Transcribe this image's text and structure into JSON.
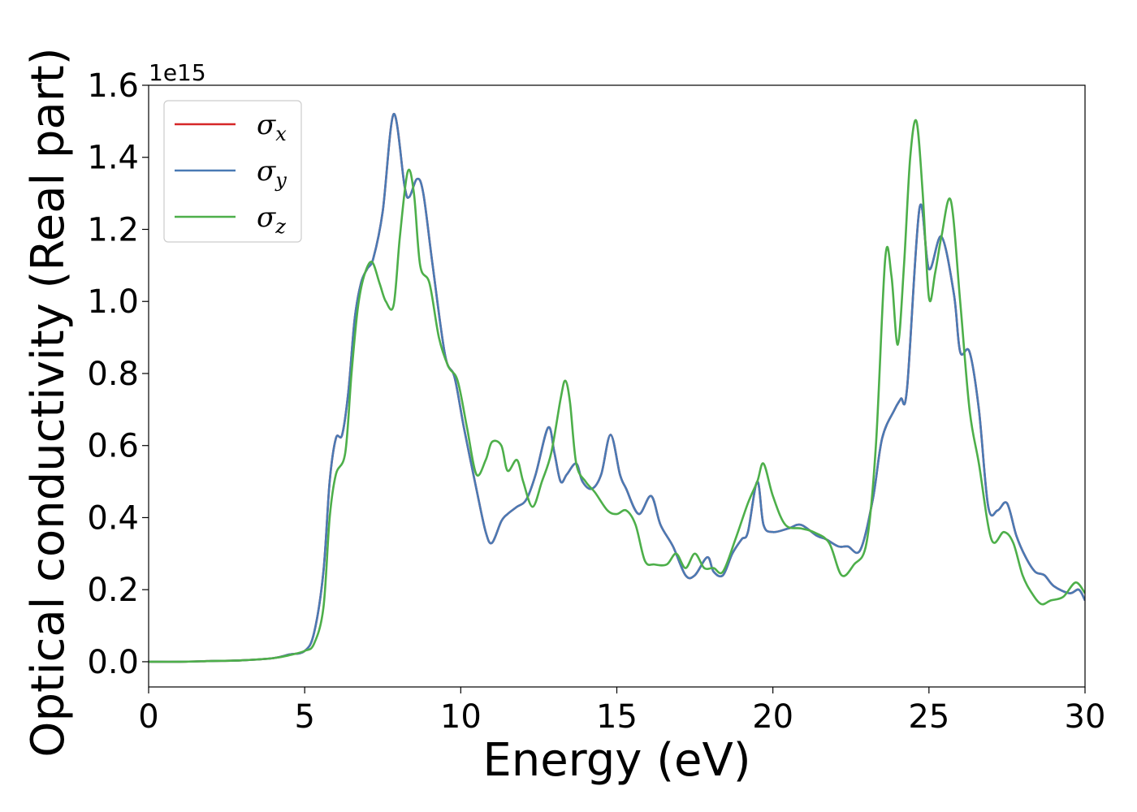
{
  "chart_data": {
    "type": "line",
    "title": "",
    "xlabel": "Energy (eV)",
    "ylabel": "Optical conductivity (Real part)",
    "y_offset_label": "1e15",
    "xlim": [
      0,
      30
    ],
    "ylim": [
      -0.07,
      1.6
    ],
    "x_ticks": [
      0,
      5,
      10,
      15,
      20,
      25,
      30
    ],
    "x_tick_labels": [
      "0",
      "5",
      "10",
      "15",
      "20",
      "25",
      "30"
    ],
    "y_ticks": [
      0.0,
      0.2,
      0.4,
      0.6,
      0.8,
      1.0,
      1.2,
      1.4,
      1.6
    ],
    "y_tick_labels": [
      "0.0",
      "0.2",
      "0.4",
      "0.6",
      "0.8",
      "1.0",
      "1.2",
      "1.4",
      "1.6"
    ],
    "grid": false,
    "legend_position": "top-left",
    "series": [
      {
        "name": "σx",
        "symbol": "σ",
        "subscript": "x",
        "color": "#d62728",
        "x": [
          0,
          1,
          2,
          3,
          4,
          4.5,
          5,
          5.3,
          5.6,
          5.8,
          6.0,
          6.2,
          6.4,
          6.6,
          6.8,
          7.0,
          7.2,
          7.5,
          7.85,
          8.2,
          8.35,
          8.6,
          8.8,
          9.1,
          9.5,
          9.8,
          10.1,
          10.5,
          10.8,
          11.0,
          11.3,
          11.5,
          11.8,
          12.1,
          12.4,
          12.8,
          13.0,
          13.2,
          13.4,
          13.7,
          13.9,
          14.2,
          14.5,
          14.8,
          15.1,
          15.3,
          15.7,
          16.1,
          16.4,
          16.8,
          17.2,
          17.5,
          17.9,
          18.1,
          18.4,
          18.7,
          19.0,
          19.2,
          19.5,
          19.7,
          20.0,
          20.5,
          20.9,
          21.4,
          21.7,
          22.1,
          22.4,
          22.8,
          23.2,
          23.5,
          23.9,
          24.1,
          24.3,
          24.7,
          25.0,
          25.4,
          25.8,
          26.0,
          26.3,
          26.6,
          26.9,
          27.2,
          27.5,
          27.8,
          28.1,
          28.4,
          28.7,
          29.0,
          29.5,
          29.8,
          30
        ],
        "values": [
          0,
          0,
          0.002,
          0.004,
          0.01,
          0.02,
          0.03,
          0.08,
          0.25,
          0.5,
          0.62,
          0.63,
          0.75,
          0.95,
          1.05,
          1.09,
          1.12,
          1.25,
          1.52,
          1.32,
          1.29,
          1.34,
          1.3,
          1.1,
          0.85,
          0.79,
          0.65,
          0.48,
          0.36,
          0.33,
          0.39,
          0.41,
          0.43,
          0.45,
          0.52,
          0.65,
          0.58,
          0.5,
          0.52,
          0.55,
          0.5,
          0.48,
          0.52,
          0.63,
          0.52,
          0.48,
          0.41,
          0.46,
          0.38,
          0.32,
          0.24,
          0.24,
          0.29,
          0.25,
          0.24,
          0.3,
          0.34,
          0.36,
          0.5,
          0.38,
          0.36,
          0.37,
          0.38,
          0.35,
          0.34,
          0.32,
          0.32,
          0.31,
          0.45,
          0.62,
          0.7,
          0.73,
          0.76,
          1.26,
          1.09,
          1.18,
          1.02,
          0.86,
          0.86,
          0.7,
          0.43,
          0.42,
          0.44,
          0.35,
          0.29,
          0.25,
          0.24,
          0.21,
          0.19,
          0.2,
          0.17
        ]
      },
      {
        "name": "σy",
        "symbol": "σ",
        "subscript": "y",
        "color": "#4a7ab4",
        "x": [
          0,
          1,
          2,
          3,
          4,
          4.5,
          5,
          5.3,
          5.6,
          5.8,
          6.0,
          6.2,
          6.4,
          6.6,
          6.8,
          7.0,
          7.2,
          7.5,
          7.85,
          8.2,
          8.35,
          8.6,
          8.8,
          9.1,
          9.5,
          9.8,
          10.1,
          10.5,
          10.8,
          11.0,
          11.3,
          11.5,
          11.8,
          12.1,
          12.4,
          12.8,
          13.0,
          13.2,
          13.4,
          13.7,
          13.9,
          14.2,
          14.5,
          14.8,
          15.1,
          15.3,
          15.7,
          16.1,
          16.4,
          16.8,
          17.2,
          17.5,
          17.9,
          18.1,
          18.4,
          18.7,
          19.0,
          19.2,
          19.5,
          19.7,
          20.0,
          20.5,
          20.9,
          21.4,
          21.7,
          22.1,
          22.4,
          22.8,
          23.2,
          23.5,
          23.9,
          24.1,
          24.3,
          24.7,
          25.0,
          25.4,
          25.8,
          26.0,
          26.3,
          26.6,
          26.9,
          27.2,
          27.5,
          27.8,
          28.1,
          28.4,
          28.7,
          29.0,
          29.5,
          29.8,
          30
        ],
        "values": [
          0,
          0,
          0.002,
          0.004,
          0.01,
          0.02,
          0.03,
          0.08,
          0.25,
          0.5,
          0.62,
          0.63,
          0.75,
          0.95,
          1.05,
          1.09,
          1.12,
          1.25,
          1.52,
          1.32,
          1.29,
          1.34,
          1.3,
          1.1,
          0.85,
          0.79,
          0.65,
          0.48,
          0.36,
          0.33,
          0.39,
          0.41,
          0.43,
          0.45,
          0.52,
          0.65,
          0.58,
          0.5,
          0.52,
          0.55,
          0.5,
          0.48,
          0.52,
          0.63,
          0.52,
          0.48,
          0.41,
          0.46,
          0.38,
          0.32,
          0.24,
          0.24,
          0.29,
          0.25,
          0.24,
          0.3,
          0.34,
          0.36,
          0.5,
          0.38,
          0.36,
          0.37,
          0.38,
          0.35,
          0.34,
          0.32,
          0.32,
          0.31,
          0.45,
          0.62,
          0.7,
          0.73,
          0.76,
          1.26,
          1.09,
          1.18,
          1.02,
          0.86,
          0.86,
          0.7,
          0.43,
          0.42,
          0.44,
          0.35,
          0.29,
          0.25,
          0.24,
          0.21,
          0.19,
          0.2,
          0.17
        ]
      },
      {
        "name": "σz",
        "symbol": "σ",
        "subscript": "z",
        "color": "#4daf4a",
        "x": [
          0,
          1,
          2,
          3,
          4,
          4.5,
          5,
          5.3,
          5.6,
          5.8,
          6.0,
          6.3,
          6.5,
          6.7,
          6.9,
          7.15,
          7.4,
          7.6,
          7.85,
          8.05,
          8.3,
          8.5,
          8.7,
          9.0,
          9.3,
          9.6,
          9.9,
          10.2,
          10.5,
          10.8,
          11.0,
          11.3,
          11.5,
          11.8,
          12.0,
          12.3,
          12.6,
          12.9,
          13.2,
          13.35,
          13.5,
          13.7,
          14.0,
          14.3,
          14.7,
          15.0,
          15.3,
          15.6,
          15.9,
          16.2,
          16.6,
          16.9,
          17.2,
          17.5,
          17.8,
          18.1,
          18.4,
          18.8,
          19.2,
          19.5,
          19.7,
          20.0,
          20.4,
          20.9,
          21.3,
          21.8,
          22.2,
          22.6,
          23.0,
          23.3,
          23.6,
          23.8,
          24.0,
          24.2,
          24.4,
          24.6,
          24.8,
          25.0,
          25.2,
          25.4,
          25.7,
          26.0,
          26.3,
          26.6,
          27.0,
          27.4,
          27.7,
          28.0,
          28.3,
          28.6,
          28.9,
          29.3,
          29.7,
          30
        ],
        "values": [
          0,
          0,
          0.002,
          0.004,
          0.01,
          0.018,
          0.03,
          0.05,
          0.15,
          0.4,
          0.52,
          0.58,
          0.8,
          0.98,
          1.07,
          1.11,
          1.05,
          1.0,
          0.99,
          1.18,
          1.36,
          1.3,
          1.1,
          1.05,
          0.9,
          0.82,
          0.78,
          0.65,
          0.52,
          0.56,
          0.61,
          0.6,
          0.53,
          0.56,
          0.5,
          0.43,
          0.5,
          0.58,
          0.73,
          0.78,
          0.72,
          0.55,
          0.5,
          0.47,
          0.42,
          0.41,
          0.42,
          0.38,
          0.28,
          0.27,
          0.27,
          0.3,
          0.26,
          0.3,
          0.26,
          0.26,
          0.25,
          0.34,
          0.44,
          0.5,
          0.55,
          0.46,
          0.38,
          0.37,
          0.36,
          0.33,
          0.24,
          0.27,
          0.33,
          0.6,
          1.12,
          1.07,
          0.88,
          1.1,
          1.4,
          1.5,
          1.3,
          1.01,
          1.08,
          1.18,
          1.28,
          1.0,
          0.7,
          0.55,
          0.34,
          0.36,
          0.33,
          0.24,
          0.19,
          0.16,
          0.17,
          0.18,
          0.22,
          0.19
        ]
      }
    ]
  }
}
